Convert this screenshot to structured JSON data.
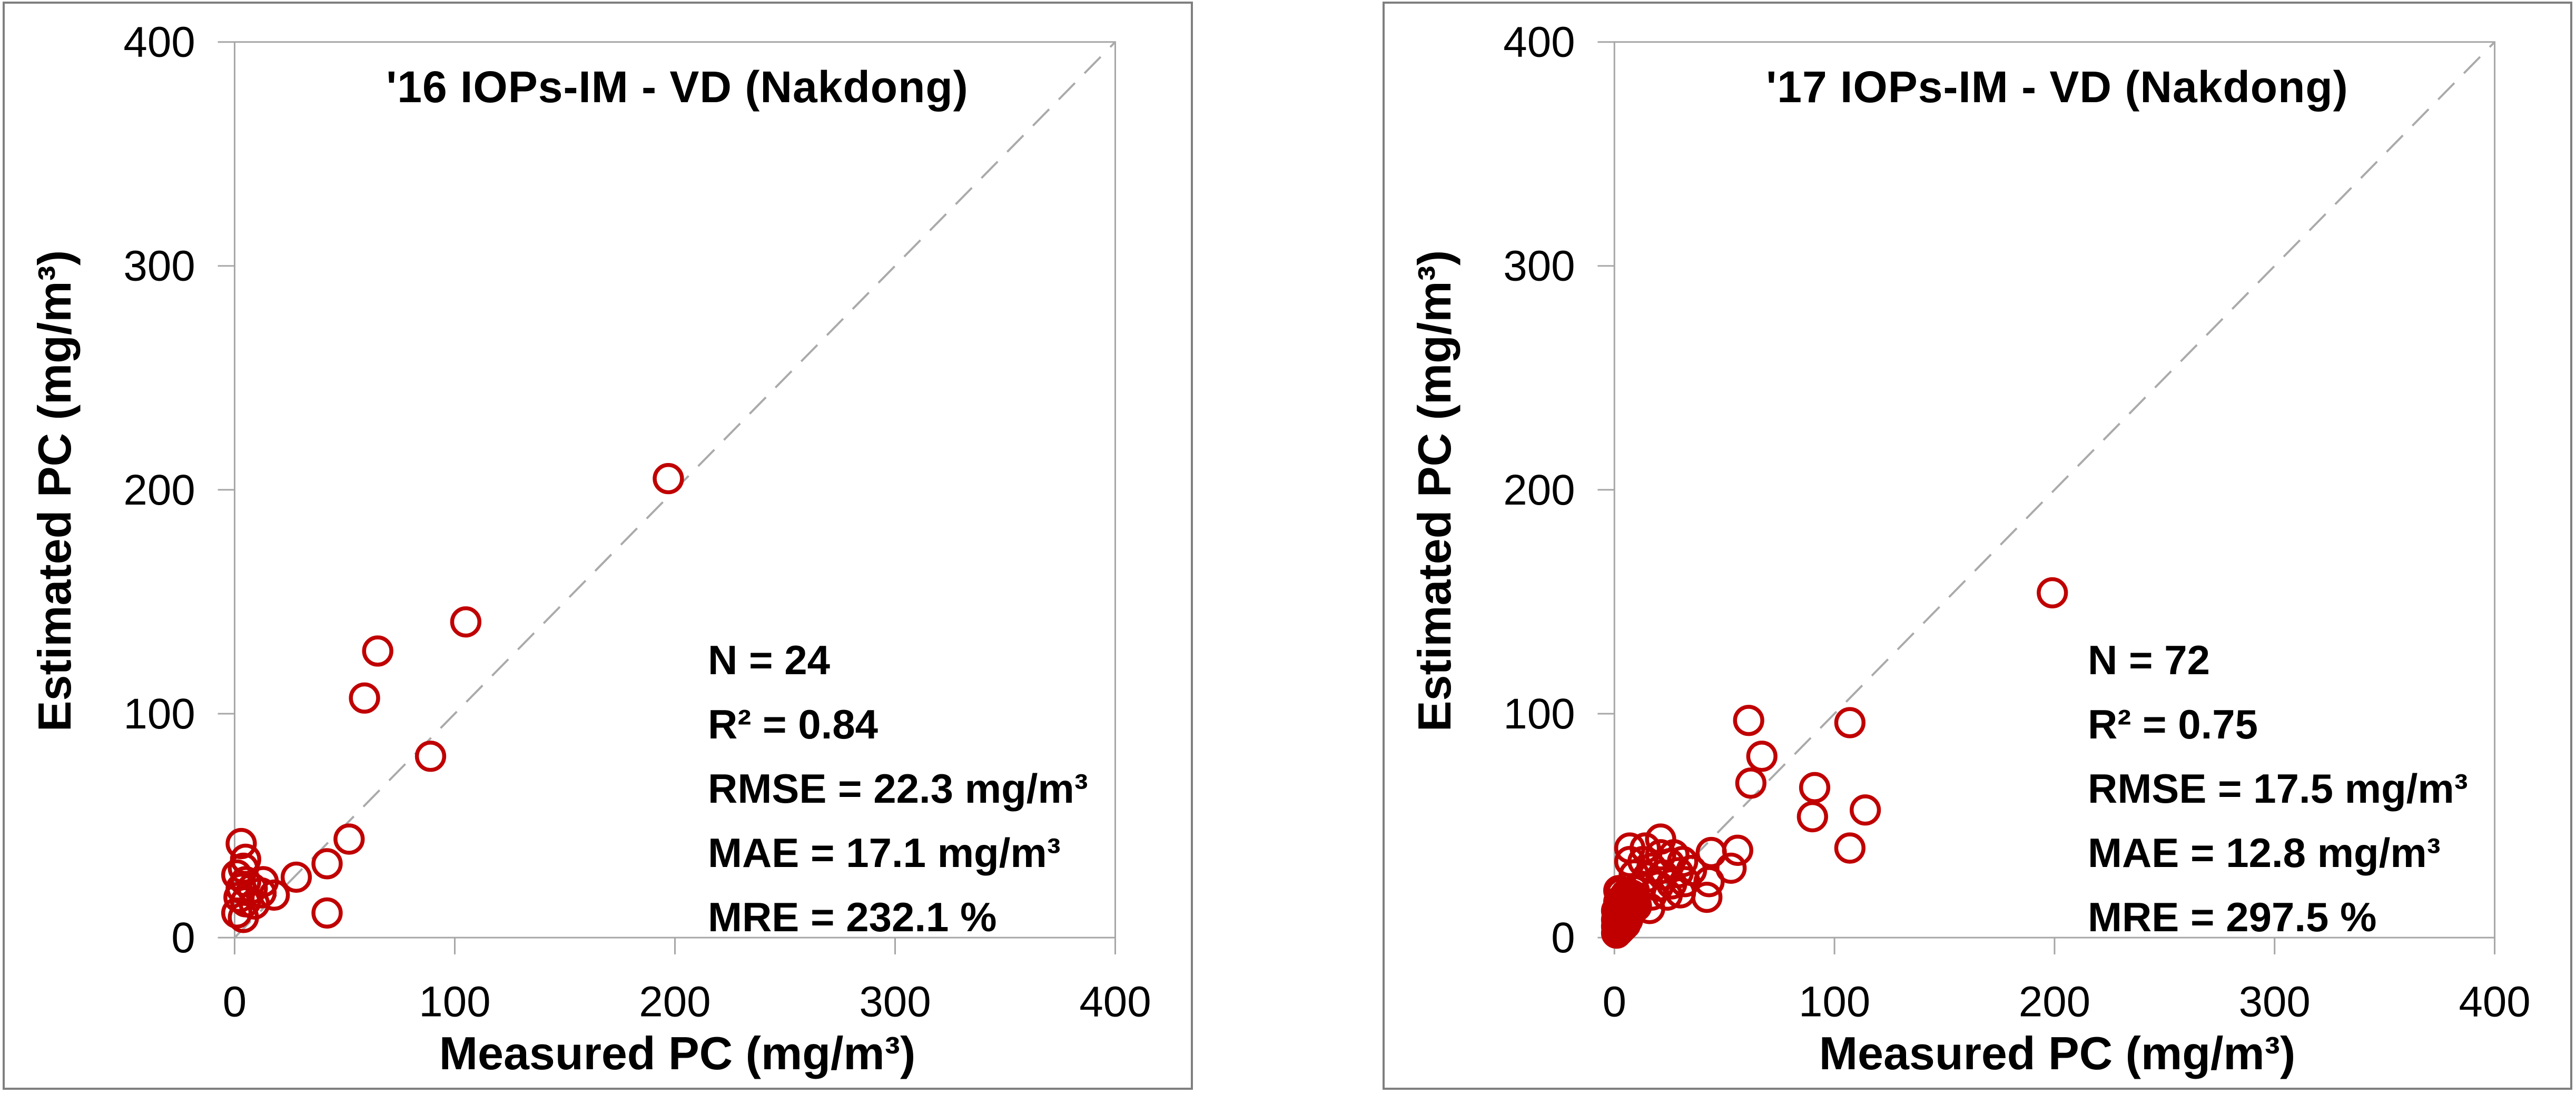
{
  "style": {
    "marker_color": "#C00000",
    "identity_line_color": "#AAAAAA",
    "axis_color": "#A6A6A6",
    "panel_border_color": "#7F7F7F",
    "text_color": "#000000",
    "background": "#FFFFFF"
  },
  "chart_data": [
    {
      "type": "scatter",
      "title": "'16 IOPs-IM - VD (Nakdong)",
      "xlabel": "Measured PC (mg/m³)",
      "ylabel": "Estimated PC (mg/m³)",
      "xlim": [
        0,
        400
      ],
      "ylim": [
        0,
        400
      ],
      "xticks": [
        0,
        100,
        200,
        300,
        400
      ],
      "yticks": [
        0,
        100,
        200,
        300,
        400
      ],
      "grid": false,
      "legend": "none",
      "identity_line": true,
      "marker": "open-circle",
      "annotations": [
        "N = 24",
        "R² = 0.84",
        "RMSE = 22.3 mg/m³",
        "MAE = 17.1 mg/m³",
        "MRE = 232.1 %"
      ],
      "points": [
        [
          197,
          205
        ],
        [
          105,
          141
        ],
        [
          65,
          128
        ],
        [
          59,
          107
        ],
        [
          89,
          81
        ],
        [
          52,
          44
        ],
        [
          42,
          33
        ],
        [
          28,
          27
        ],
        [
          42,
          11
        ],
        [
          18,
          19
        ],
        [
          13,
          25
        ],
        [
          12,
          20
        ],
        [
          9,
          15
        ],
        [
          8,
          22
        ],
        [
          5,
          35
        ],
        [
          5,
          25
        ],
        [
          5,
          16
        ],
        [
          4,
          31
        ],
        [
          4,
          9
        ],
        [
          3,
          42
        ],
        [
          3,
          22
        ],
        [
          2,
          18
        ],
        [
          1,
          28
        ],
        [
          1,
          11
        ]
      ]
    },
    {
      "type": "scatter",
      "title": "'17 IOPs-IM - VD (Nakdong)",
      "xlabel": "Measured PC (mg/m³)",
      "ylabel": "Estimated PC (mg/m³)",
      "xlim": [
        0,
        400
      ],
      "ylim": [
        0,
        400
      ],
      "xticks": [
        0,
        100,
        200,
        300,
        400
      ],
      "yticks": [
        0,
        100,
        200,
        300,
        400
      ],
      "grid": false,
      "legend": "none",
      "identity_line": true,
      "marker": "open-circle",
      "annotations": [
        "N = 72",
        "R² = 0.75",
        "RMSE = 17.5 mg/m³",
        "MAE = 12.8 mg/m³",
        "MRE = 297.5 %"
      ],
      "points": [
        [
          199,
          154
        ],
        [
          107,
          96
        ],
        [
          61,
          97
        ],
        [
          67,
          81
        ],
        [
          62,
          69
        ],
        [
          91,
          67
        ],
        [
          90,
          54
        ],
        [
          114,
          57
        ],
        [
          107,
          40
        ],
        [
          56,
          39
        ],
        [
          44,
          38
        ],
        [
          53,
          31
        ],
        [
          43,
          25
        ],
        [
          42,
          18
        ],
        [
          7,
          40
        ],
        [
          14,
          40
        ],
        [
          21,
          44
        ],
        [
          13,
          34
        ],
        [
          21,
          37
        ],
        [
          27,
          37
        ],
        [
          7,
          34
        ],
        [
          17,
          31
        ],
        [
          25,
          33
        ],
        [
          31,
          34
        ],
        [
          9,
          28
        ],
        [
          15,
          27
        ],
        [
          22,
          28
        ],
        [
          29,
          29
        ],
        [
          35,
          30
        ],
        [
          12,
          23
        ],
        [
          20,
          23
        ],
        [
          26,
          24
        ],
        [
          32,
          25
        ],
        [
          17,
          19
        ],
        [
          24,
          19
        ],
        [
          30,
          20
        ],
        [
          16,
          13
        ],
        [
          8,
          12
        ],
        [
          1,
          2
        ],
        [
          2,
          3
        ],
        [
          3,
          4
        ],
        [
          1,
          5
        ],
        [
          2,
          6
        ],
        [
          4,
          5
        ],
        [
          5,
          6
        ],
        [
          3,
          7
        ],
        [
          1,
          8
        ],
        [
          2,
          9
        ],
        [
          4,
          9
        ],
        [
          6,
          8
        ],
        [
          5,
          10
        ],
        [
          3,
          11
        ],
        [
          1,
          12
        ],
        [
          2,
          13
        ],
        [
          4,
          13
        ],
        [
          6,
          12
        ],
        [
          7,
          11
        ],
        [
          5,
          14
        ],
        [
          3,
          15
        ],
        [
          2,
          16
        ],
        [
          4,
          17
        ],
        [
          6,
          16
        ],
        [
          8,
          15
        ],
        [
          7,
          18
        ],
        [
          5,
          19
        ],
        [
          3,
          20
        ],
        [
          2,
          21
        ],
        [
          6,
          20
        ],
        [
          8,
          19
        ],
        [
          9,
          17
        ],
        [
          10,
          14
        ],
        [
          9,
          21
        ]
      ]
    }
  ]
}
